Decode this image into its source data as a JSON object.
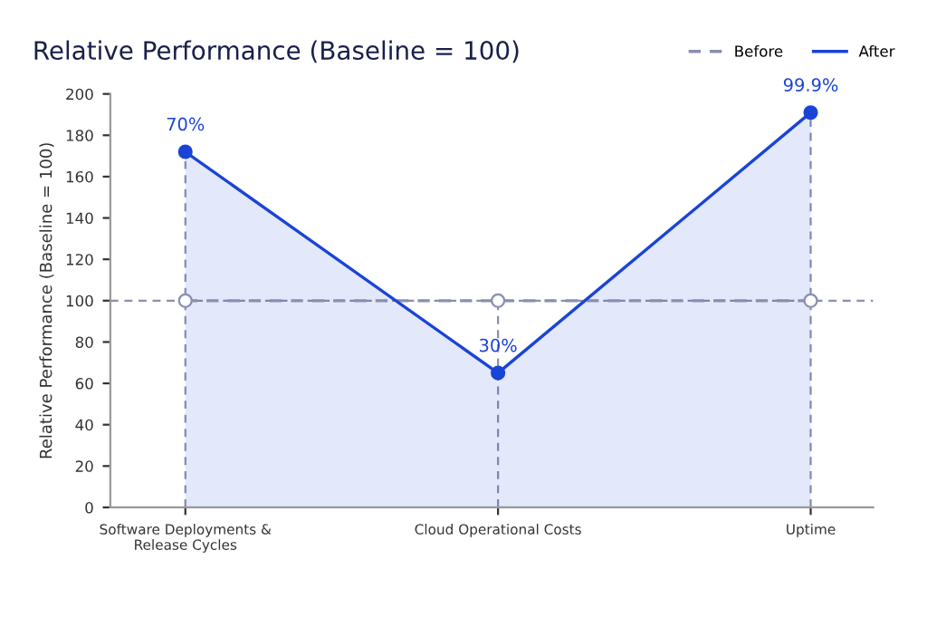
{
  "chart_data": {
    "type": "line",
    "title": "Relative Performance (Baseline = 100)",
    "ylabel": "Relative Performance (Baseline = 100)",
    "categories": [
      "Software Deployments &\nRelease Cycles",
      "Cloud Operational Costs",
      "Uptime"
    ],
    "series": [
      {
        "name": "Before",
        "type": "line",
        "color": "#8a8fb0",
        "values": [
          100,
          100,
          100
        ],
        "line_style": "dashed",
        "marker": "circle"
      },
      {
        "name": "After",
        "type": "area",
        "color": "#1a44d6",
        "values": [
          172,
          65,
          191
        ],
        "line_style": "solid",
        "marker": "circle"
      }
    ],
    "annotations": [
      {
        "text": "70%",
        "x": "Software Deployments &\nRelease Cycles",
        "y": 172
      },
      {
        "text": "30%",
        "x": "Cloud Operational Costs",
        "y": 65
      },
      {
        "text": "99.9%",
        "x": "Uptime",
        "y": 191
      }
    ],
    "ylim": [
      0,
      200
    ],
    "yticks": [
      0,
      20,
      40,
      60,
      80,
      100,
      120,
      140,
      160,
      180,
      200
    ],
    "ref_lines": [
      {
        "axis": "y",
        "value": 100,
        "color": "#8a8fb0",
        "line_style": "dashed"
      },
      {
        "axis": "x",
        "value": "Software Deployments &\nRelease Cycles",
        "color": "#8a8fb0",
        "line_style": "dashed"
      },
      {
        "axis": "x",
        "value": "Cloud Operational Costs",
        "color": "#8a8fb0",
        "line_style": "dashed"
      },
      {
        "axis": "x",
        "value": "Uptime",
        "color": "#8a8fb0",
        "line_style": "dashed"
      }
    ],
    "grid": false,
    "legend": "top right"
  }
}
